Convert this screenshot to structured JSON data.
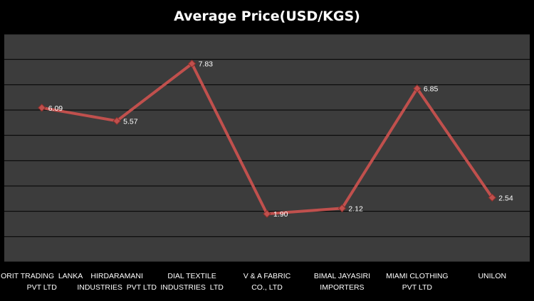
{
  "chart_data": {
    "type": "line",
    "title": "Average Price(USD/KGS)",
    "categories": [
      [
        "ORIT TRADING  LANKA",
        "PVT LTD"
      ],
      [
        "HIRDARAMANI",
        "INDUSTRIES  PVT LTD"
      ],
      [
        "DIAL TEXTILE",
        "INDUSTRIES  LTD"
      ],
      [
        "V & A FABRIC",
        "CO., LTD"
      ],
      [
        "BIMAL JAYASIRI",
        "IMPORTERS"
      ],
      [
        "MIAMI CLOTHING",
        "PVT LTD"
      ],
      [
        "UNILON"
      ]
    ],
    "values": [
      6.09,
      5.57,
      7.83,
      1.9,
      2.12,
      6.85,
      2.54
    ],
    "data_labels": [
      "6.09",
      "5.57",
      "7.83",
      "1.90",
      "2.12",
      "6.85",
      "2.54"
    ],
    "ylim": [
      0,
      9
    ],
    "ytick_step": 1,
    "grid": true,
    "legend": "none",
    "colors": {
      "background": "#000000",
      "plot_area": "#3c3c3c",
      "gridline": "#000000",
      "line": "#c0504d",
      "marker": "#c0504d",
      "text": "#ffffff"
    }
  }
}
